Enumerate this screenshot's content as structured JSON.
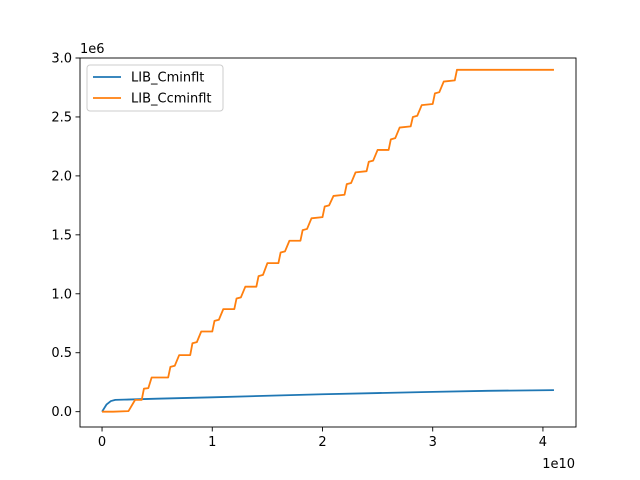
{
  "chart_data": {
    "type": "line",
    "x_scale_label": "1e10",
    "y_scale_label": "1e6",
    "xlim": [
      -0.2,
      4.3
    ],
    "ylim": [
      -0.13,
      3.0
    ],
    "x_ticks": [
      0,
      1,
      2,
      3,
      4
    ],
    "x_tick_labels": [
      "0",
      "1",
      "2",
      "3",
      "4"
    ],
    "y_ticks": [
      0.0,
      0.5,
      1.0,
      1.5,
      2.0,
      2.5,
      3.0
    ],
    "y_tick_labels": [
      "0.0",
      "0.5",
      "1.0",
      "1.5",
      "2.0",
      "2.5",
      "3.0"
    ],
    "grid": false,
    "legend_position": "top-left",
    "series": [
      {
        "name": "LIB_Cminflt",
        "color": "#1f77b4",
        "x": [
          0,
          0.04,
          0.08,
          0.12,
          0.2,
          0.5,
          1.0,
          1.5,
          2.0,
          2.5,
          3.0,
          3.5,
          4.0,
          4.1
        ],
        "y": [
          0.0,
          0.06,
          0.09,
          0.1,
          0.102,
          0.11,
          0.122,
          0.135,
          0.148,
          0.158,
          0.168,
          0.177,
          0.182,
          0.183
        ]
      },
      {
        "name": "LIB_Ccminflt",
        "color": "#ff7f0e",
        "x": [
          0,
          0.1,
          0.24,
          0.3,
          0.36,
          0.38,
          0.42,
          0.45,
          0.6,
          0.62,
          0.66,
          0.7,
          0.8,
          0.82,
          0.86,
          0.9,
          1.0,
          1.02,
          1.06,
          1.1,
          1.2,
          1.22,
          1.26,
          1.3,
          1.4,
          1.42,
          1.46,
          1.5,
          1.6,
          1.62,
          1.66,
          1.7,
          1.8,
          1.82,
          1.86,
          1.9,
          2.0,
          2.02,
          2.06,
          2.1,
          2.2,
          2.22,
          2.26,
          2.3,
          2.4,
          2.42,
          2.46,
          2.5,
          2.6,
          2.62,
          2.66,
          2.7,
          2.8,
          2.82,
          2.86,
          2.9,
          3.0,
          3.02,
          3.06,
          3.1,
          3.2,
          3.22,
          3.26,
          3.3,
          3.4,
          3.42,
          3.46,
          3.5,
          3.6,
          3.62,
          3.66,
          3.7,
          3.8,
          3.82,
          3.86,
          3.9,
          4.0,
          4.02,
          4.06,
          4.1
        ],
        "y": [
          0.0,
          0.0,
          0.005,
          0.1,
          0.1,
          0.195,
          0.2,
          0.29,
          0.29,
          0.38,
          0.39,
          0.48,
          0.48,
          0.58,
          0.59,
          0.68,
          0.68,
          0.77,
          0.78,
          0.87,
          0.87,
          0.96,
          0.97,
          1.06,
          1.06,
          1.15,
          1.16,
          1.26,
          1.26,
          1.35,
          1.36,
          1.45,
          1.45,
          1.54,
          1.55,
          1.64,
          1.65,
          1.74,
          1.75,
          1.83,
          1.84,
          1.93,
          1.94,
          2.03,
          2.04,
          2.12,
          2.13,
          2.22,
          2.22,
          2.31,
          2.32,
          2.41,
          2.42,
          2.5,
          2.51,
          2.6,
          2.61,
          2.7,
          2.71,
          2.8,
          2.81,
          2.9,
          2.9,
          2.9,
          2.9,
          2.9,
          2.9,
          2.9,
          2.9,
          2.9,
          2.9,
          2.9,
          2.9,
          2.9,
          2.9,
          2.9,
          2.9,
          2.9,
          2.9,
          2.9
        ]
      }
    ]
  }
}
